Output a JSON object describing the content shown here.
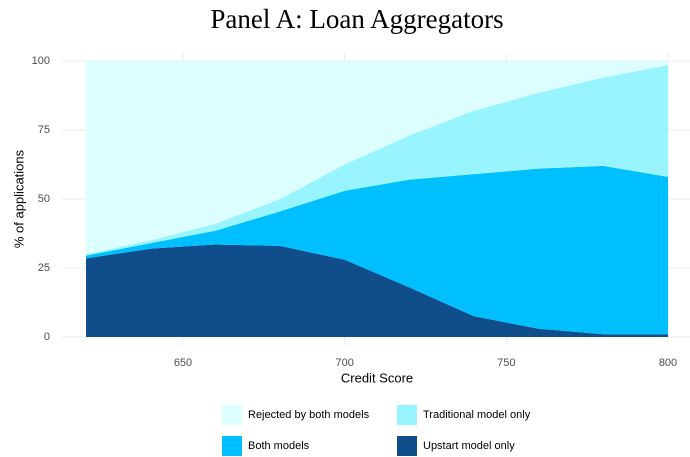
{
  "chart_data": {
    "type": "stacked_area",
    "title": "Panel A: Loan Aggregators",
    "x_label": "Credit Score",
    "y_label": "% of applications",
    "x": [
      620,
      640,
      660,
      680,
      700,
      720,
      740,
      760,
      780,
      800
    ],
    "series": [
      {
        "name": "Upstart model only",
        "color": "#104e8b",
        "values": [
          28.5,
          32,
          33.5,
          33,
          28,
          18,
          7.5,
          3,
          1,
          1
        ]
      },
      {
        "name": "Both models",
        "color": "#00bfff",
        "values": [
          1,
          2,
          5,
          12.5,
          25,
          39,
          51.5,
          58,
          61,
          57
        ]
      },
      {
        "name": "Traditional model only",
        "color": "#98f5ff",
        "values": [
          0.5,
          1,
          2.5,
          4.5,
          9.5,
          16,
          23,
          27.5,
          32,
          40.5
        ]
      },
      {
        "name": "Rejected by both models",
        "color": "#ddfeff",
        "values": [
          70,
          65,
          59,
          50,
          37.5,
          27,
          18,
          11.5,
          6,
          1.5
        ]
      }
    ],
    "xlim": [
      620,
      800
    ],
    "ylim": [
      0,
      100
    ],
    "xticks": [
      650,
      700,
      750,
      800
    ],
    "yticks": [
      0,
      25,
      50,
      75,
      100
    ],
    "grid": true,
    "legend_position": "bottom"
  }
}
